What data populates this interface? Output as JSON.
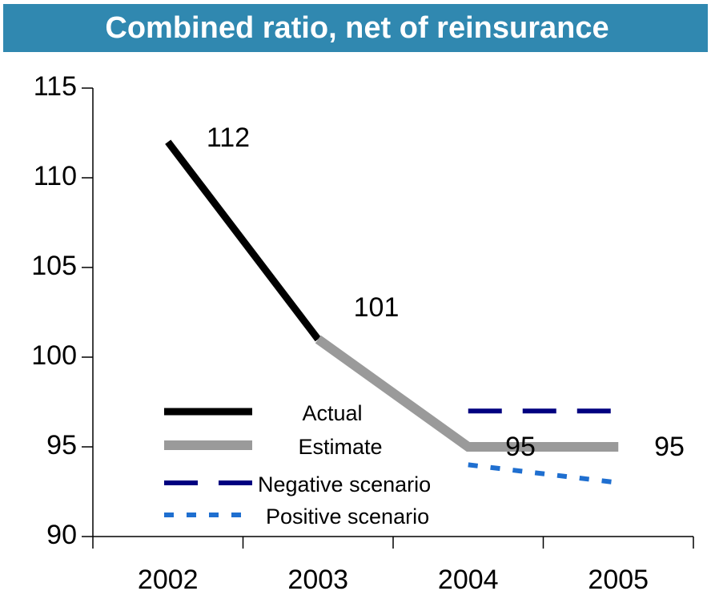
{
  "chart_data": {
    "type": "line",
    "title": "Combined ratio, net of reinsurance",
    "categories": [
      "2002",
      "2003",
      "2004",
      "2005"
    ],
    "series": [
      {
        "name": "Actual",
        "color": "#000000",
        "values": [
          112,
          101,
          null,
          null
        ]
      },
      {
        "name": "Estimate",
        "color": "#9a9a9a",
        "values": [
          null,
          101,
          95,
          95
        ]
      },
      {
        "name": "Negative scenario",
        "color": "#000080",
        "values": [
          null,
          null,
          97,
          97
        ]
      },
      {
        "name": "Positive scenario",
        "color": "#1f6fd0",
        "values": [
          null,
          null,
          94,
          93
        ]
      }
    ],
    "ylim": [
      90,
      115
    ],
    "yticks": [
      90,
      95,
      100,
      105,
      110,
      115
    ],
    "grid": false
  }
}
